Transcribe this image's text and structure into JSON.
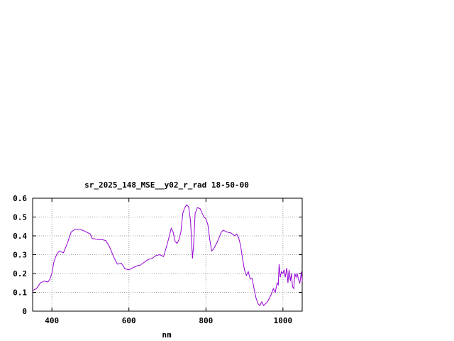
{
  "chart_data": {
    "type": "line",
    "title": "sr_2025_148_MSE__y02_r_rad 18-50-00",
    "xlabel": "nm",
    "ylabel": "",
    "xlim": [
      350,
      1050
    ],
    "ylim": [
      0,
      0.6
    ],
    "x_ticks": [
      "400",
      "600",
      "800",
      "1000"
    ],
    "x_tick_values": [
      400,
      600,
      800,
      1000
    ],
    "y_ticks": [
      "0",
      "0.1",
      "0.2",
      "0.3",
      "0.4",
      "0.5",
      "0.6"
    ],
    "y_tick_values": [
      0,
      0.1,
      0.2,
      0.3,
      0.4,
      0.5,
      0.6
    ],
    "grid": true,
    "series": [
      {
        "name": "",
        "color": "#9400d3",
        "points": [
          [
            350,
            0.11
          ],
          [
            360,
            0.12
          ],
          [
            370,
            0.15
          ],
          [
            380,
            0.16
          ],
          [
            390,
            0.155
          ],
          [
            395,
            0.17
          ],
          [
            400,
            0.2
          ],
          [
            405,
            0.26
          ],
          [
            410,
            0.29
          ],
          [
            415,
            0.31
          ],
          [
            420,
            0.32
          ],
          [
            430,
            0.31
          ],
          [
            440,
            0.36
          ],
          [
            450,
            0.42
          ],
          [
            460,
            0.435
          ],
          [
            470,
            0.435
          ],
          [
            480,
            0.43
          ],
          [
            490,
            0.42
          ],
          [
            500,
            0.41
          ],
          [
            505,
            0.385
          ],
          [
            510,
            0.385
          ],
          [
            520,
            0.38
          ],
          [
            530,
            0.38
          ],
          [
            540,
            0.375
          ],
          [
            550,
            0.34
          ],
          [
            560,
            0.29
          ],
          [
            570,
            0.25
          ],
          [
            580,
            0.255
          ],
          [
            590,
            0.225
          ],
          [
            600,
            0.22
          ],
          [
            610,
            0.23
          ],
          [
            620,
            0.24
          ],
          [
            630,
            0.245
          ],
          [
            640,
            0.26
          ],
          [
            650,
            0.275
          ],
          [
            660,
            0.28
          ],
          [
            670,
            0.295
          ],
          [
            680,
            0.3
          ],
          [
            690,
            0.29
          ],
          [
            700,
            0.36
          ],
          [
            710,
            0.44
          ],
          [
            715,
            0.42
          ],
          [
            720,
            0.37
          ],
          [
            725,
            0.36
          ],
          [
            730,
            0.38
          ],
          [
            735,
            0.42
          ],
          [
            740,
            0.52
          ],
          [
            745,
            0.55
          ],
          [
            750,
            0.565
          ],
          [
            755,
            0.555
          ],
          [
            760,
            0.48
          ],
          [
            765,
            0.28
          ],
          [
            768,
            0.35
          ],
          [
            772,
            0.52
          ],
          [
            778,
            0.55
          ],
          [
            785,
            0.545
          ],
          [
            790,
            0.52
          ],
          [
            795,
            0.5
          ],
          [
            800,
            0.49
          ],
          [
            805,
            0.46
          ],
          [
            810,
            0.38
          ],
          [
            815,
            0.32
          ],
          [
            820,
            0.33
          ],
          [
            830,
            0.37
          ],
          [
            840,
            0.42
          ],
          [
            845,
            0.43
          ],
          [
            855,
            0.42
          ],
          [
            865,
            0.415
          ],
          [
            875,
            0.4
          ],
          [
            880,
            0.41
          ],
          [
            885,
            0.39
          ],
          [
            890,
            0.35
          ],
          [
            895,
            0.28
          ],
          [
            900,
            0.22
          ],
          [
            905,
            0.19
          ],
          [
            910,
            0.21
          ],
          [
            915,
            0.17
          ],
          [
            920,
            0.175
          ],
          [
            925,
            0.12
          ],
          [
            930,
            0.07
          ],
          [
            935,
            0.04
          ],
          [
            940,
            0.03
          ],
          [
            945,
            0.05
          ],
          [
            950,
            0.03
          ],
          [
            955,
            0.04
          ],
          [
            960,
            0.05
          ],
          [
            965,
            0.07
          ],
          [
            970,
            0.09
          ],
          [
            975,
            0.12
          ],
          [
            980,
            0.1
          ],
          [
            985,
            0.15
          ],
          [
            988,
            0.14
          ],
          [
            990,
            0.25
          ],
          [
            993,
            0.18
          ],
          [
            996,
            0.21
          ],
          [
            1000,
            0.2
          ],
          [
            1003,
            0.22
          ],
          [
            1006,
            0.18
          ],
          [
            1010,
            0.23
          ],
          [
            1013,
            0.15
          ],
          [
            1016,
            0.22
          ],
          [
            1019,
            0.16
          ],
          [
            1022,
            0.2
          ],
          [
            1025,
            0.13
          ],
          [
            1028,
            0.12
          ],
          [
            1031,
            0.2
          ],
          [
            1034,
            0.18
          ],
          [
            1037,
            0.2
          ],
          [
            1040,
            0.17
          ],
          [
            1044,
            0.15
          ],
          [
            1048,
            0.21
          ],
          [
            1050,
            0.16
          ]
        ]
      }
    ]
  }
}
